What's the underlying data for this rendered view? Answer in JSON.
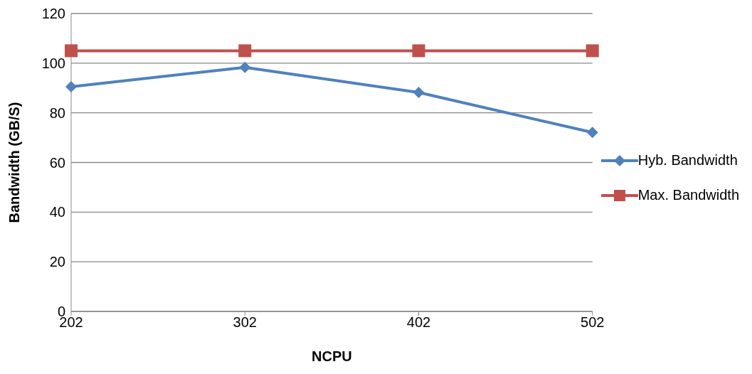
{
  "chart_data": {
    "type": "line",
    "xlabel": "NCPU",
    "ylabel": "Bandwidth (GB/S)",
    "categories": [
      "202",
      "302",
      "402",
      "502"
    ],
    "series": [
      {
        "name": "Hyb. Bandwidth",
        "color": "#4f81bd",
        "values": [
          90.5,
          98.3,
          88.2,
          72.1
        ],
        "marker": "diamond"
      },
      {
        "name": "Max. Bandwidth",
        "color": "#c0504d",
        "values": [
          105,
          105,
          105,
          105
        ],
        "marker": "square"
      }
    ],
    "ylim": [
      0,
      120
    ],
    "yticks": [
      0,
      20,
      40,
      60,
      80,
      100,
      120
    ],
    "grid": "y",
    "legend": "right",
    "line_style": "solid"
  }
}
